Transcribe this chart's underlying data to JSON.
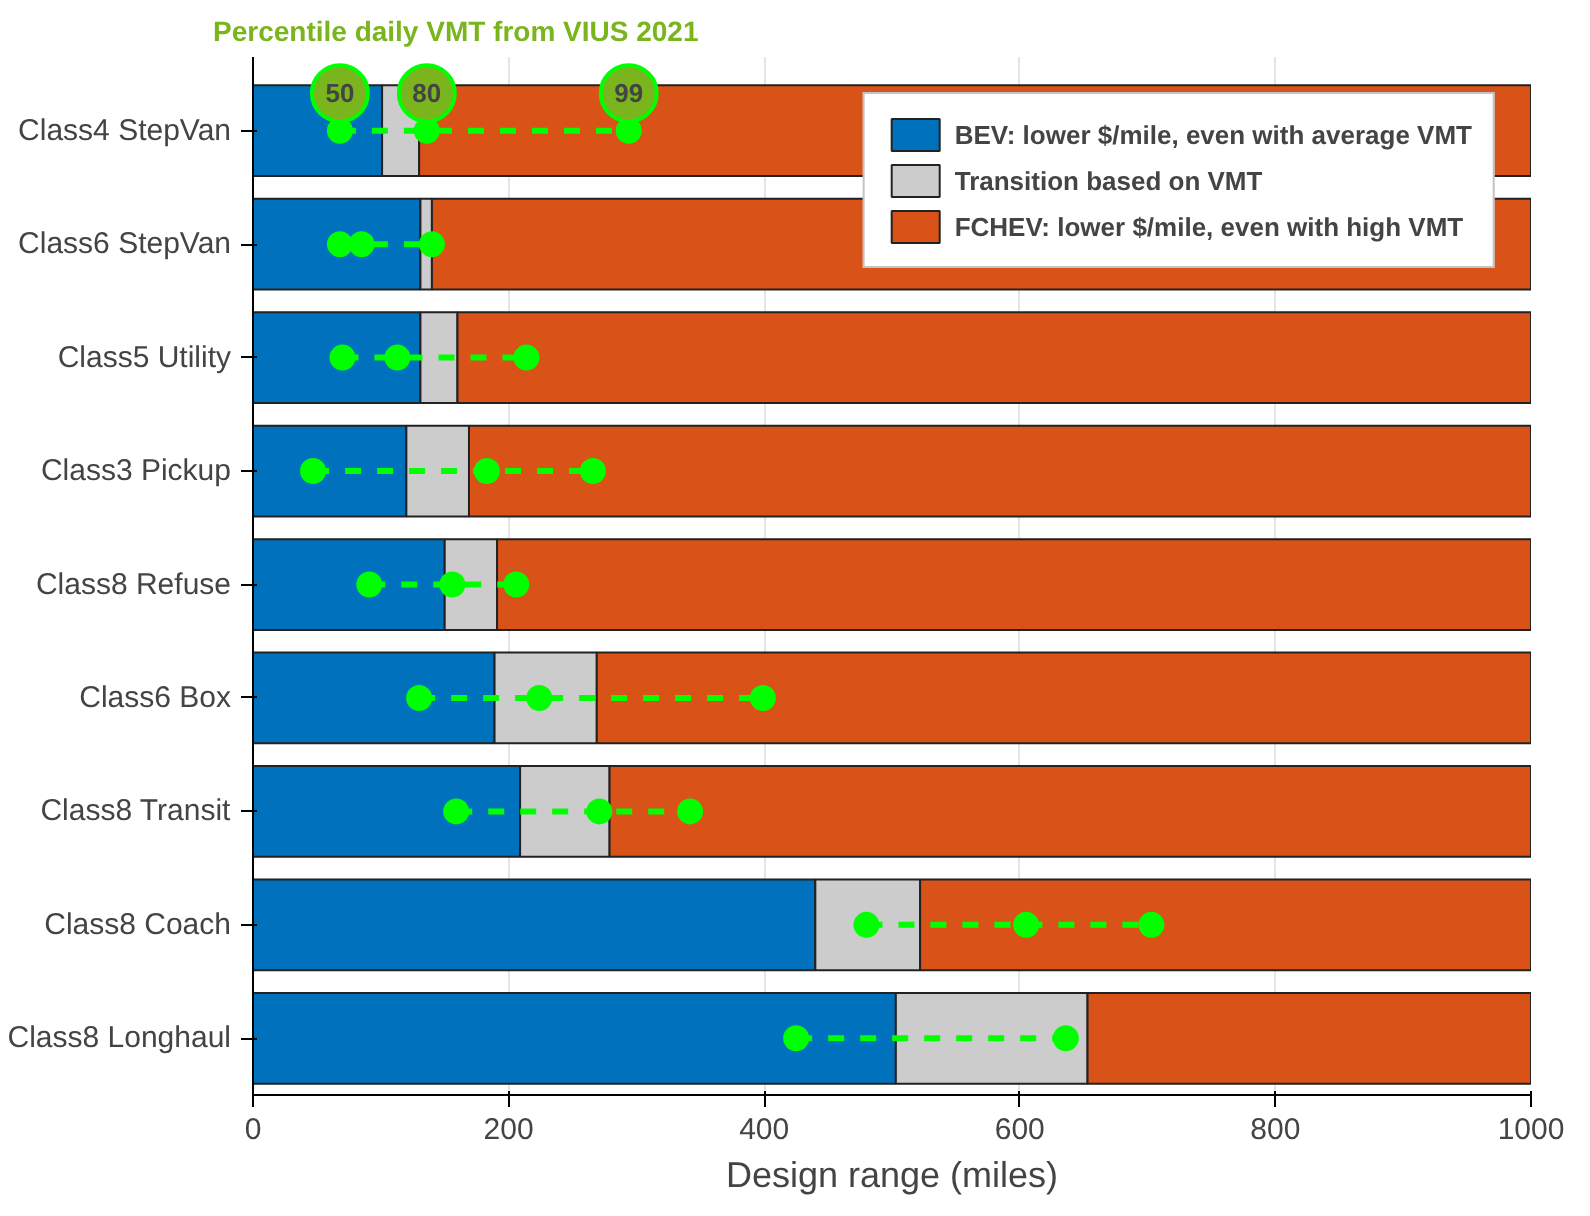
{
  "chart_data": {
    "type": "bar",
    "orientation": "horizontal",
    "stacked": true,
    "title": "Percentile daily VMT from VIUS 2021",
    "xlabel": "Design range (miles)",
    "categories": [
      "Class4 StepVan",
      "Class6 StepVan",
      "Class5 Utility",
      "Class3 Pickup",
      "Class8 Refuse",
      "Class6 Box",
      "Class8 Transit",
      "Class8 Coach",
      "Class8 Longhaul"
    ],
    "series": [
      {
        "name": "BEV: lower $/mile, even with average VMT",
        "color": "#0072bd",
        "values": [
          101,
          131,
          131,
          120,
          150,
          189,
          209,
          440,
          503
        ]
      },
      {
        "name": "Transition based on VMT",
        "color": "#cccccc",
        "values": [
          29,
          9,
          29,
          49,
          41,
          80,
          70,
          82,
          150
        ]
      },
      {
        "name": "FCHEV: lower $/mile, even with high VMT",
        "color": "#d95319",
        "values": [
          870,
          860,
          840,
          831,
          809,
          731,
          721,
          478,
          347
        ]
      },
      {
        "name": "50",
        "type": "scatter",
        "color": "#00ff00",
        "values": [
          68,
          68,
          70,
          47,
          91,
          130,
          159,
          480,
          425
        ]
      },
      {
        "name": "80",
        "type": "scatter",
        "color": "#00ff00",
        "values": [
          136,
          85,
          113,
          183,
          156,
          224,
          271,
          605,
          636
        ]
      },
      {
        "name": "99",
        "type": "scatter",
        "color": "#00ff00",
        "values": [
          294,
          140,
          214,
          266,
          206,
          399,
          342,
          703,
          null
        ]
      }
    ],
    "xlim": [
      0,
      1000
    ],
    "xticks": [
      0,
      200,
      400,
      600,
      800,
      1000
    ],
    "grid": "x",
    "legend": "top right",
    "marker": "circle",
    "line_style": "dashed"
  }
}
